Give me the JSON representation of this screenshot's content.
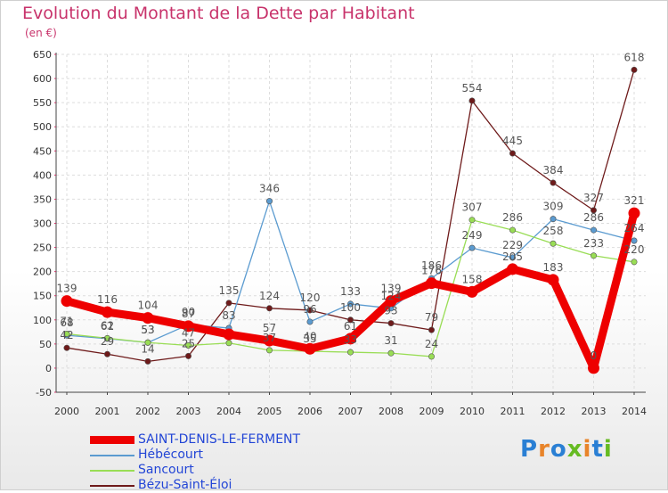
{
  "title": "Evolution du Montant de la Dette par Habitant",
  "subtitle": "(en €)",
  "logo": {
    "text": "Proxiti",
    "colors": [
      "#2a7fd4",
      "#e8842a",
      "#2a7fd4",
      "#66bb22",
      "#e8842a",
      "#2a7fd4",
      "#66bb22"
    ]
  },
  "chart_data": {
    "type": "line",
    "x": [
      2000,
      2001,
      2002,
      2003,
      2004,
      2005,
      2006,
      2007,
      2008,
      2009,
      2010,
      2011,
      2012,
      2013,
      2014
    ],
    "ylim": [
      -50,
      650
    ],
    "yticks": [
      -50,
      0,
      50,
      100,
      150,
      200,
      250,
      300,
      350,
      400,
      450,
      500,
      550,
      600,
      650
    ],
    "grid": true,
    "legend_position": "bottom-left",
    "series": [
      {
        "name": "SAINT-DENIS-LE-FERMENT",
        "color": "#ee0000",
        "values": [
          139,
          116,
          104,
          87,
          70,
          57,
          40,
          61,
          139,
          176,
          158,
          205,
          183,
          0,
          321
        ],
        "labels": [
          "139",
          "116",
          "104",
          "87",
          "",
          "57",
          "40",
          "61",
          "139",
          "176",
          "158",
          "205",
          "183",
          "0",
          "321"
        ]
      },
      {
        "name": "Hébécourt",
        "color": "#5b9bd0",
        "values": [
          68,
          61,
          53,
          90,
          83,
          346,
          96,
          133,
          124,
          186,
          249,
          229,
          309,
          286,
          264
        ],
        "labels": [
          "68",
          "61",
          "53",
          "90",
          "83",
          "346",
          "96",
          "133",
          "124",
          "186",
          "249",
          "229",
          "309",
          "286",
          "264"
        ]
      },
      {
        "name": "Sancourt",
        "color": "#99dd55",
        "values": [
          71,
          62,
          53,
          47,
          52,
          37,
          35,
          33,
          31,
          24,
          307,
          286,
          258,
          233,
          220
        ],
        "labels": [
          "71",
          "62",
          "53",
          "47",
          "",
          "37",
          "35",
          "33",
          "31",
          "24",
          "307",
          "286",
          "258",
          "233",
          "220"
        ]
      },
      {
        "name": "Bézu-Saint-Éloi",
        "color": "#6e1a1a",
        "values": [
          42,
          29,
          14,
          25,
          135,
          124,
          120,
          100,
          93,
          79,
          554,
          445,
          384,
          327,
          618
        ],
        "labels": [
          "42",
          "29",
          "14",
          "25",
          "135",
          "124",
          "120",
          "100",
          "93",
          "79",
          "554",
          "445",
          "384",
          "327",
          "618"
        ]
      }
    ]
  }
}
